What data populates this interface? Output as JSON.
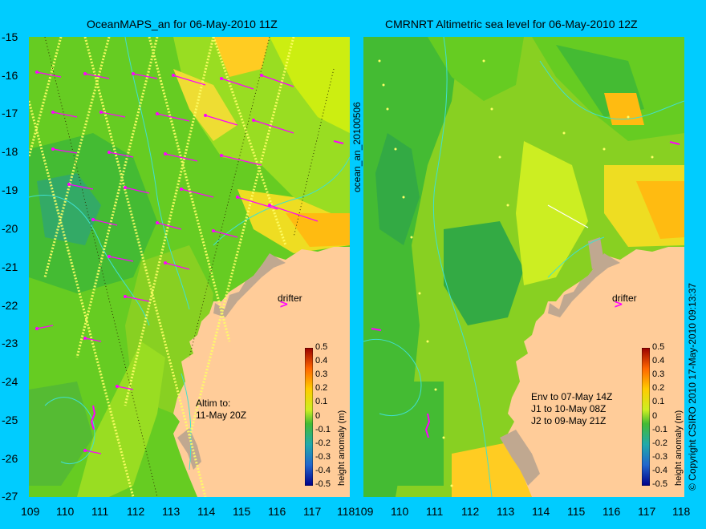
{
  "left_panel": {
    "title": "OceanMAPS_an for 06-May-2010 11Z",
    "side_label": "ocean_an_20100506",
    "note_lines": [
      "Altim to:",
      "11-May 20Z"
    ],
    "drifter_label": "drifter"
  },
  "right_panel": {
    "title": "CMRNRT Altimetric sea level  for 06-May-2010 12Z",
    "side_label": "© Copyright CSIRO 2010  17-May-2010 09:13:37",
    "note_lines": [
      "Env to 07-May 14Z",
      "J1 to 10-May 08Z",
      "J2 to 09-May 21Z"
    ],
    "drifter_label": "drifter"
  },
  "axes": {
    "lat_ticks": [
      "-15",
      "-16",
      "-17",
      "-18",
      "-19",
      "-20",
      "-21",
      "-22",
      "-23",
      "-24",
      "-25",
      "-26",
      "-27"
    ],
    "lon_ticks": [
      "109",
      "110",
      "111",
      "112",
      "113",
      "114",
      "115",
      "116",
      "117",
      "118"
    ],
    "lat_range": [
      -27,
      -15
    ],
    "lon_range": [
      109,
      118
    ]
  },
  "colorbar": {
    "label": "height anomaly (m)",
    "ticks": [
      "0.5",
      "0.4",
      "0.3",
      "0.2",
      "0.1",
      "0",
      "-0.1",
      "-0.2",
      "-0.3",
      "-0.4",
      "-0.5"
    ],
    "range": [
      -0.5,
      0.5
    ]
  },
  "colors": {
    "background": "#00ccff",
    "land": "#ffcc99",
    "shelf": "#c0a890",
    "vector": "#ff00ff",
    "contour": "#40e0d0"
  }
}
